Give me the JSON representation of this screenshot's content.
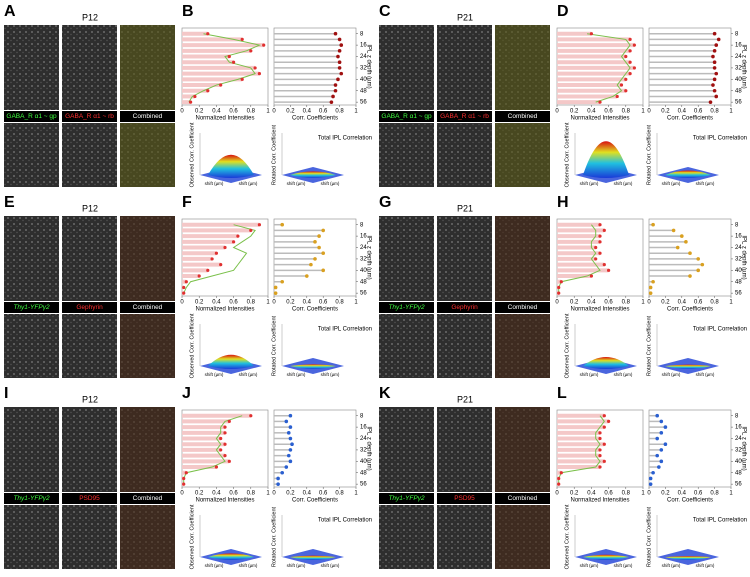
{
  "axes": {
    "intensity_label": "Normalized Intensities",
    "corr_label": "Corr. Coefficients",
    "depth_label": "IPL z depth (µm)",
    "xticks": [
      0,
      0.2,
      0.4,
      0.6,
      0.8,
      1
    ],
    "depth_ticks": [
      8,
      16,
      24,
      32,
      40,
      48,
      56
    ],
    "surface": {
      "observed": "Observed Corr. Coefficient",
      "rotated": "Rotated Corr. Coefficient",
      "total": "Total IPL Correlation",
      "shift": "shift (µm)"
    }
  },
  "panels": [
    {
      "image_letter": "A",
      "chart_letter": "B",
      "age": "P12",
      "labels": [
        "GABA_R α1 ~ gp",
        "GABA_R α1 ~ rb",
        "Combined"
      ],
      "depths": [
        8,
        12,
        16,
        20,
        24,
        28,
        32,
        36,
        40,
        44,
        48,
        52,
        56
      ],
      "red": [
        0.3,
        0.7,
        0.95,
        0.8,
        0.55,
        0.6,
        0.85,
        0.9,
        0.7,
        0.45,
        0.3,
        0.15,
        0.1
      ],
      "green": [
        0.25,
        0.6,
        0.9,
        0.75,
        0.5,
        0.55,
        0.8,
        0.85,
        0.65,
        0.4,
        0.25,
        0.12,
        0.08
      ],
      "corr": [
        0.75,
        0.8,
        0.82,
        0.8,
        0.78,
        0.8,
        0.8,
        0.82,
        0.78,
        0.75,
        0.75,
        0.72,
        0.7
      ],
      "corr_color": "#a01010",
      "observed_peak": 0.45,
      "rotated_peak": 0.08
    },
    {
      "image_letter": "C",
      "chart_letter": "D",
      "age": "P21",
      "labels": [
        "GABA_R α1 ~ gp",
        "GABA_R α1 ~ rb",
        "Combined"
      ],
      "depths": [
        8,
        12,
        16,
        20,
        24,
        28,
        32,
        36,
        40,
        44,
        48,
        52,
        56
      ],
      "red": [
        0.4,
        0.85,
        0.9,
        0.85,
        0.8,
        0.85,
        0.9,
        0.85,
        0.8,
        0.75,
        0.8,
        0.7,
        0.5
      ],
      "green": [
        0.35,
        0.8,
        0.85,
        0.8,
        0.75,
        0.8,
        0.85,
        0.8,
        0.75,
        0.7,
        0.75,
        0.65,
        0.45
      ],
      "corr": [
        0.8,
        0.85,
        0.82,
        0.8,
        0.78,
        0.8,
        0.8,
        0.82,
        0.8,
        0.78,
        0.8,
        0.82,
        0.75
      ],
      "corr_color": "#a01010",
      "observed_peak": 0.75,
      "rotated_peak": 0.1
    },
    {
      "image_letter": "E",
      "chart_letter": "F",
      "age": "P12",
      "labels": [
        "Thy1-YFPγ2",
        "Gephyrin",
        "Combined"
      ],
      "depths": [
        8,
        12,
        16,
        20,
        24,
        28,
        32,
        36,
        40,
        44,
        48,
        52,
        56
      ],
      "red": [
        0.9,
        0.8,
        0.65,
        0.6,
        0.5,
        0.4,
        0.35,
        0.45,
        0.3,
        0.2,
        0.05,
        0.02,
        0.02
      ],
      "green": [
        0.6,
        0.85,
        0.8,
        0.7,
        0.6,
        0.75,
        0.7,
        0.65,
        0.6,
        0.35,
        0.1,
        0.05,
        0.02
      ],
      "corr": [
        0.1,
        0.6,
        0.55,
        0.5,
        0.55,
        0.6,
        0.5,
        0.45,
        0.6,
        0.4,
        0.1,
        0.02,
        0.02
      ],
      "corr_color": "#d9a020",
      "observed_peak": 0.25,
      "rotated_peak": 0.04
    },
    {
      "image_letter": "G",
      "chart_letter": "H",
      "age": "P21",
      "labels": [
        "Thy1-YFPγ2",
        "Gephyrin",
        "Combined"
      ],
      "depths": [
        8,
        12,
        16,
        20,
        24,
        28,
        32,
        36,
        40,
        44,
        48,
        52,
        56
      ],
      "red": [
        0.5,
        0.55,
        0.5,
        0.5,
        0.45,
        0.5,
        0.45,
        0.55,
        0.6,
        0.4,
        0.05,
        0.02,
        0.02
      ],
      "green": [
        0.4,
        0.45,
        0.45,
        0.4,
        0.4,
        0.45,
        0.4,
        0.45,
        0.5,
        0.35,
        0.05,
        0.02,
        0.02
      ],
      "corr": [
        0.05,
        0.3,
        0.4,
        0.45,
        0.35,
        0.5,
        0.6,
        0.65,
        0.6,
        0.5,
        0.05,
        0.02,
        0.02
      ],
      "corr_color": "#d9a020",
      "observed_peak": 0.2,
      "rotated_peak": 0.03
    },
    {
      "image_letter": "I",
      "chart_letter": "J",
      "age": "P12",
      "labels": [
        "Thy1-YFPγ2",
        "PSD95",
        "Combined"
      ],
      "depths": [
        8,
        12,
        16,
        20,
        24,
        28,
        32,
        36,
        40,
        44,
        48,
        52,
        56
      ],
      "red": [
        0.8,
        0.55,
        0.5,
        0.5,
        0.45,
        0.5,
        0.45,
        0.5,
        0.55,
        0.4,
        0.05,
        0.02,
        0.02
      ],
      "green": [
        0.7,
        0.5,
        0.45,
        0.45,
        0.4,
        0.45,
        0.4,
        0.45,
        0.5,
        0.35,
        0.05,
        0.02,
        0.02
      ],
      "corr": [
        0.2,
        0.15,
        0.2,
        0.18,
        0.2,
        0.22,
        0.2,
        0.18,
        0.2,
        0.15,
        0.1,
        0.05,
        0.05
      ],
      "corr_color": "#2a5fd0",
      "observed_peak": 0.08,
      "rotated_peak": 0.03
    },
    {
      "image_letter": "K",
      "chart_letter": "L",
      "age": "P21",
      "labels": [
        "Thy1-YFPγ2",
        "PSD95",
        "Combined"
      ],
      "depths": [
        8,
        12,
        16,
        20,
        24,
        28,
        32,
        36,
        40,
        44,
        48,
        52,
        56
      ],
      "red": [
        0.55,
        0.6,
        0.55,
        0.5,
        0.5,
        0.55,
        0.5,
        0.5,
        0.55,
        0.5,
        0.05,
        0.02,
        0.02
      ],
      "green": [
        0.5,
        0.55,
        0.5,
        0.45,
        0.45,
        0.5,
        0.45,
        0.45,
        0.5,
        0.45,
        0.05,
        0.02,
        0.02
      ],
      "corr": [
        0.1,
        0.15,
        0.2,
        0.15,
        0.1,
        0.2,
        0.15,
        0.1,
        0.15,
        0.12,
        0.05,
        0.02,
        0.02
      ],
      "corr_color": "#2a5fd0",
      "observed_peak": 0.05,
      "rotated_peak": 0.02
    }
  ]
}
